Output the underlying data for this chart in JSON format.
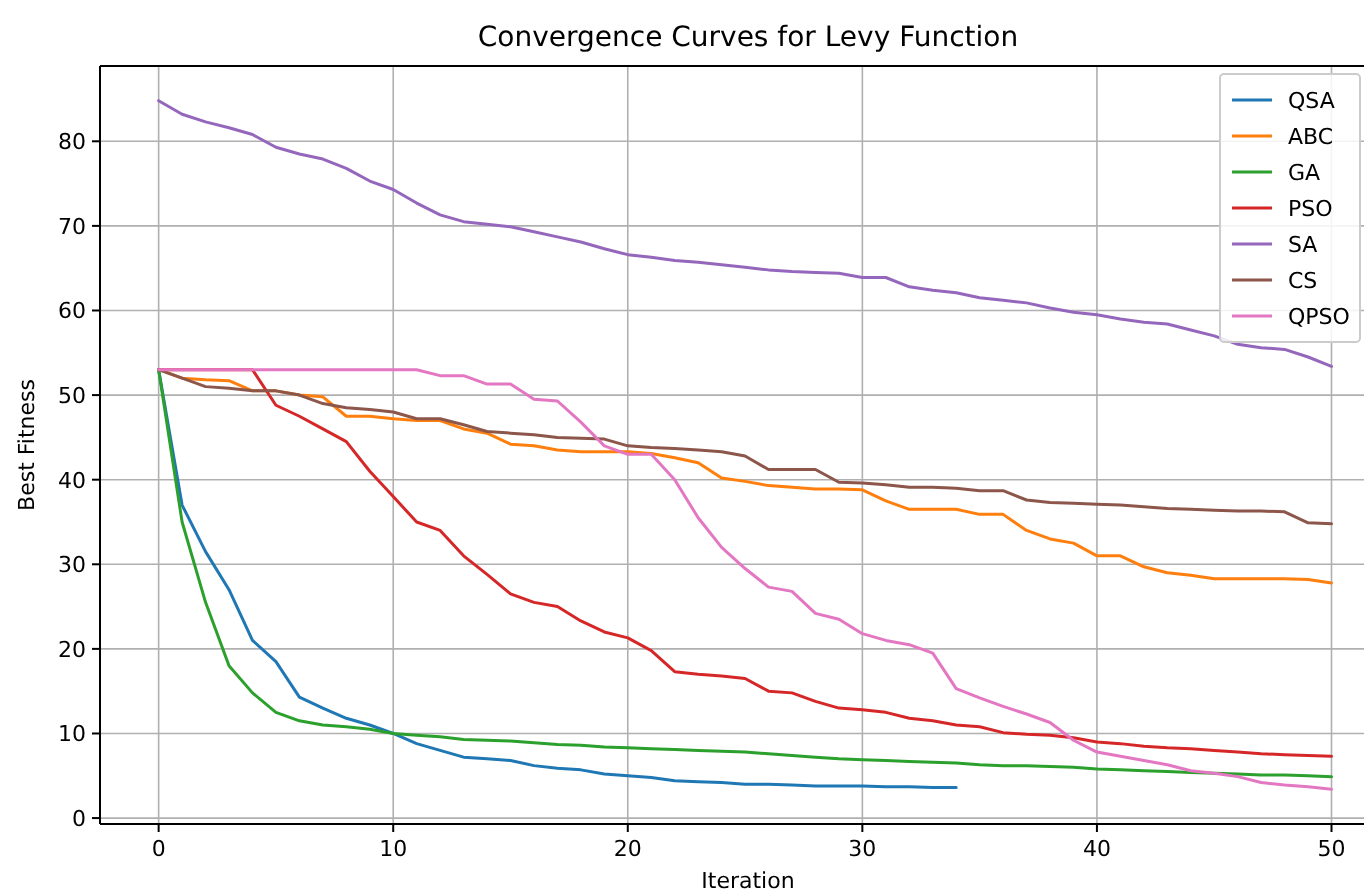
{
  "chart_data": {
    "type": "line",
    "title": "Convergence Curves for Levy Function",
    "xlabel": "Iteration",
    "ylabel": "Best Fitness",
    "xlim": [
      -2.5,
      51.3
    ],
    "ylim": [
      -0.7,
      88.9
    ],
    "xticks": [
      0,
      10,
      20,
      30,
      40,
      50
    ],
    "yticks": [
      0,
      10,
      20,
      30,
      40,
      50,
      60,
      70,
      80
    ],
    "grid": true,
    "legend": "top right",
    "line_style": "solid",
    "marker": "none",
    "x": [
      0,
      1,
      2,
      3,
      4,
      5,
      6,
      7,
      8,
      9,
      10,
      11,
      12,
      13,
      14,
      15,
      16,
      17,
      18,
      19,
      20,
      21,
      22,
      23,
      24,
      25,
      26,
      27,
      28,
      29,
      30,
      31,
      32,
      33,
      34,
      35,
      36,
      37,
      38,
      39,
      40,
      41,
      42,
      43,
      44,
      45,
      46,
      47,
      48,
      49,
      50
    ],
    "series": [
      {
        "name": "QSA",
        "color": "#1f77b4",
        "values": [
          53,
          37,
          31.5,
          27,
          21,
          18.5,
          14.3,
          13,
          11.8,
          11,
          10,
          8.8,
          8,
          7.2,
          7,
          6.8,
          6.2,
          5.9,
          5.7,
          5.2,
          5,
          4.8,
          4.4,
          4.3,
          4.2,
          4,
          4,
          3.9,
          3.8,
          3.8,
          3.8,
          3.7,
          3.7,
          3.6,
          3.6,
          null,
          null,
          null,
          null,
          null,
          null,
          null,
          null,
          null,
          null,
          null,
          null,
          null,
          null,
          null,
          null
        ]
      },
      {
        "name": "ABC",
        "color": "#ff7f0e",
        "values": [
          53,
          52,
          51.8,
          51.7,
          50.5,
          50.5,
          50,
          49.8,
          47.5,
          47.5,
          47.2,
          47,
          47,
          46,
          45.5,
          44.2,
          44,
          43.5,
          43.3,
          43.3,
          43.3,
          43.1,
          42.6,
          42,
          40.2,
          39.8,
          39.3,
          39.1,
          38.9,
          38.9,
          38.8,
          37.5,
          36.5,
          36.5,
          36.5,
          35.9,
          35.9,
          34,
          33,
          32.5,
          31,
          31,
          29.7,
          29,
          28.7,
          28.3,
          28.3,
          28.3,
          28.3,
          28.2,
          27.8
        ]
      },
      {
        "name": "GA",
        "color": "#2ca02c",
        "values": [
          53,
          35,
          25.5,
          18,
          14.8,
          12.5,
          11.5,
          11,
          10.8,
          10.5,
          10,
          9.8,
          9.6,
          9.3,
          9.2,
          9.1,
          8.9,
          8.7,
          8.6,
          8.4,
          8.3,
          8.2,
          8.1,
          8,
          7.9,
          7.8,
          7.6,
          7.4,
          7.2,
          7,
          6.9,
          6.8,
          6.7,
          6.6,
          6.5,
          6.3,
          6.2,
          6.2,
          6.1,
          6,
          5.8,
          5.7,
          5.6,
          5.5,
          5.4,
          5.3,
          5.2,
          5.1,
          5.1,
          5,
          4.9
        ]
      },
      {
        "name": "PSO",
        "color": "#d62728",
        "values": [
          53,
          53,
          53,
          53,
          53,
          48.8,
          47.5,
          46,
          44.5,
          41,
          38,
          35,
          34,
          31,
          28.8,
          26.5,
          25.5,
          25,
          23.3,
          22,
          21.3,
          19.8,
          17.3,
          17,
          16.8,
          16.5,
          15,
          14.8,
          13.8,
          13,
          12.8,
          12.5,
          11.8,
          11.5,
          11,
          10.8,
          10.1,
          9.9,
          9.8,
          9.5,
          9,
          8.8,
          8.5,
          8.3,
          8.2,
          8,
          7.8,
          7.6,
          7.5,
          7.4,
          7.3
        ]
      },
      {
        "name": "SA",
        "color": "#9467bd",
        "values": [
          84.8,
          83.2,
          82.3,
          81.6,
          80.8,
          79.3,
          78.5,
          77.9,
          76.8,
          75.3,
          74.3,
          72.7,
          71.3,
          70.5,
          70.2,
          69.9,
          69.3,
          68.7,
          68.1,
          67.3,
          66.6,
          66.3,
          65.9,
          65.7,
          65.4,
          65.1,
          64.8,
          64.6,
          64.5,
          64.4,
          63.9,
          63.9,
          62.8,
          62.4,
          62.1,
          61.5,
          61.2,
          60.9,
          60.3,
          59.8,
          59.5,
          59,
          58.6,
          58.4,
          57.7,
          57,
          56,
          55.6,
          55.4,
          54.5,
          53.4
        ]
      },
      {
        "name": "CS",
        "color": "#8c564b",
        "values": [
          53,
          52,
          51,
          50.8,
          50.5,
          50.5,
          50,
          49,
          48.5,
          48.3,
          48,
          47.2,
          47.2,
          46.5,
          45.7,
          45.5,
          45.3,
          45,
          44.9,
          44.8,
          44,
          43.8,
          43.7,
          43.5,
          43.3,
          42.8,
          41.2,
          41.2,
          41.2,
          39.7,
          39.6,
          39.4,
          39.1,
          39.1,
          39,
          38.7,
          38.7,
          37.6,
          37.3,
          37.2,
          37.1,
          37,
          36.8,
          36.6,
          36.5,
          36.4,
          36.3,
          36.3,
          36.2,
          34.9,
          34.8
        ]
      },
      {
        "name": "QPSO",
        "color": "#e377c2",
        "values": [
          53,
          53,
          53,
          53,
          53,
          53,
          53,
          53,
          53,
          53,
          53,
          53,
          52.3,
          52.3,
          51.3,
          51.3,
          49.5,
          49.3,
          46.8,
          44,
          43,
          43,
          40,
          35.5,
          32,
          29.5,
          27.3,
          26.8,
          24.2,
          23.5,
          21.8,
          21,
          20.5,
          19.5,
          15.3,
          14.2,
          13.2,
          12.3,
          11.3,
          9.2,
          7.8,
          7.3,
          6.8,
          6.3,
          5.6,
          5.3,
          4.9,
          4.2,
          3.9,
          3.7,
          3.4
        ]
      }
    ]
  }
}
